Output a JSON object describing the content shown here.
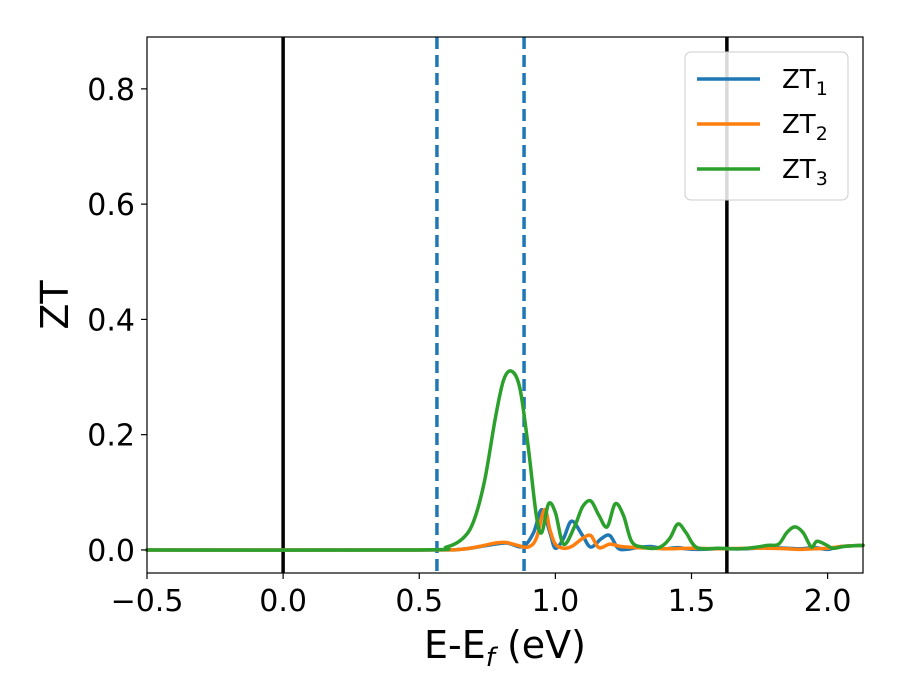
{
  "chart_data": {
    "type": "line",
    "xlabel_main": "E-E",
    "xlabel_sub": "f",
    "xlabel_unit": " (eV)",
    "ylabel": "ZT",
    "xlim": [
      -0.5,
      2.13
    ],
    "ylim": [
      -0.04,
      0.89
    ],
    "xticks": [
      -0.5,
      0.0,
      0.5,
      1.0,
      1.5,
      2.0
    ],
    "xtick_labels": [
      "−0.5",
      "0.0",
      "0.5",
      "1.0",
      "1.5",
      "2.0"
    ],
    "yticks": [
      0.0,
      0.2,
      0.4,
      0.6,
      0.8
    ],
    "ytick_labels": [
      "0.0",
      "0.2",
      "0.4",
      "0.6",
      "0.8"
    ],
    "grid": false,
    "legend_position": "top-right",
    "vlines_solid": [
      0.0,
      1.63
    ],
    "vlines_dashed": [
      0.565,
      0.885
    ],
    "solid_vline_color": "#000000",
    "dashed_vline_color": "#1f77b4",
    "series": [
      {
        "name_main": "ZT",
        "name_sub": "1",
        "color": "#1f77b4",
        "x": [
          -0.5,
          0.5,
          0.65,
          0.75,
          0.82,
          0.88,
          0.92,
          0.95,
          0.98,
          1.0,
          1.03,
          1.06,
          1.1,
          1.13,
          1.17,
          1.2,
          1.23,
          1.26,
          1.3,
          1.35,
          1.4,
          1.45,
          1.48,
          1.52,
          1.6,
          1.7,
          1.78,
          1.85,
          1.9,
          1.95,
          2.0,
          2.05,
          2.13
        ],
        "y": [
          0.0,
          0.0,
          0.001,
          0.008,
          0.012,
          0.006,
          0.03,
          0.07,
          0.03,
          0.003,
          0.02,
          0.05,
          0.025,
          0.005,
          0.02,
          0.025,
          0.003,
          0.001,
          0.004,
          0.006,
          0.002,
          0.004,
          0.002,
          0.001,
          0.002,
          0.002,
          0.004,
          0.003,
          0.002,
          0.004,
          0.001,
          0.006,
          0.008
        ]
      },
      {
        "name_main": "ZT",
        "name_sub": "2",
        "color": "#ff7f0e",
        "x": [
          -0.5,
          0.5,
          0.65,
          0.72,
          0.78,
          0.82,
          0.86,
          0.9,
          0.93,
          0.96,
          0.98,
          1.0,
          1.03,
          1.06,
          1.1,
          1.13,
          1.16,
          1.2,
          1.24,
          1.3,
          1.36,
          1.42,
          1.5,
          1.6,
          1.7,
          1.78,
          1.85,
          1.9,
          1.95,
          2.0,
          2.05,
          2.13
        ],
        "y": [
          0.0,
          0.0,
          0.001,
          0.006,
          0.012,
          0.013,
          0.008,
          0.005,
          0.02,
          0.07,
          0.035,
          0.01,
          0.003,
          0.006,
          0.02,
          0.025,
          0.004,
          0.01,
          0.006,
          0.004,
          0.003,
          0.002,
          0.003,
          0.002,
          0.003,
          0.003,
          0.002,
          0.001,
          0.002,
          0.003,
          0.006,
          0.008
        ]
      },
      {
        "name_main": "ZT",
        "name_sub": "3",
        "color": "#2ca02c",
        "x": [
          -0.5,
          0.5,
          0.6,
          0.66,
          0.7,
          0.74,
          0.78,
          0.81,
          0.84,
          0.87,
          0.9,
          0.93,
          0.95,
          0.975,
          1.0,
          1.03,
          1.07,
          1.1,
          1.13,
          1.16,
          1.19,
          1.22,
          1.25,
          1.28,
          1.32,
          1.38,
          1.42,
          1.45,
          1.48,
          1.52,
          1.6,
          1.68,
          1.74,
          1.78,
          1.82,
          1.85,
          1.88,
          1.91,
          1.94,
          1.96,
          1.99,
          2.02,
          2.06,
          2.13
        ],
        "y": [
          0.0,
          0.0,
          0.005,
          0.02,
          0.05,
          0.12,
          0.23,
          0.295,
          0.31,
          0.28,
          0.18,
          0.06,
          0.03,
          0.08,
          0.065,
          0.01,
          0.04,
          0.075,
          0.085,
          0.06,
          0.04,
          0.08,
          0.06,
          0.015,
          0.005,
          0.004,
          0.02,
          0.045,
          0.03,
          0.004,
          0.003,
          0.002,
          0.005,
          0.008,
          0.01,
          0.03,
          0.04,
          0.03,
          0.005,
          0.015,
          0.01,
          0.003,
          0.006,
          0.008
        ]
      }
    ]
  }
}
